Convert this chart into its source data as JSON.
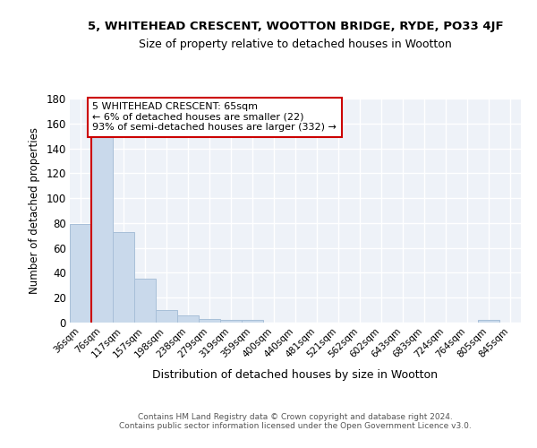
{
  "title": "5, WHITEHEAD CRESCENT, WOOTTON BRIDGE, RYDE, PO33 4JF",
  "subtitle": "Size of property relative to detached houses in Wootton",
  "xlabel": "Distribution of detached houses by size in Wootton",
  "ylabel": "Number of detached properties",
  "bar_color": "#c9d9eb",
  "bar_edge_color": "#a8bfd8",
  "background_color": "#ffffff",
  "plot_background": "#eef2f8",
  "grid_color": "#ffffff",
  "annotation_box_color": "#ffffff",
  "annotation_box_edge": "#cc0000",
  "red_line_color": "#cc0000",
  "categories": [
    "36sqm",
    "76sqm",
    "117sqm",
    "157sqm",
    "198sqm",
    "238sqm",
    "279sqm",
    "319sqm",
    "359sqm",
    "400sqm",
    "440sqm",
    "481sqm",
    "521sqm",
    "562sqm",
    "602sqm",
    "643sqm",
    "683sqm",
    "724sqm",
    "764sqm",
    "805sqm",
    "845sqm"
  ],
  "values": [
    79,
    151,
    73,
    35,
    10,
    6,
    3,
    2,
    2,
    0,
    0,
    0,
    0,
    0,
    0,
    0,
    0,
    0,
    0,
    2,
    0
  ],
  "ylim": [
    0,
    180
  ],
  "yticks": [
    0,
    20,
    40,
    60,
    80,
    100,
    120,
    140,
    160,
    180
  ],
  "property_label": "5 WHITEHEAD CRESCENT: 65sqm",
  "smaller_pct": "6%",
  "smaller_count": 22,
  "larger_pct": "93%",
  "larger_count": 332,
  "red_line_x": 0.5,
  "footer_line1": "Contains HM Land Registry data © Crown copyright and database right 2024.",
  "footer_line2": "Contains public sector information licensed under the Open Government Licence v3.0."
}
